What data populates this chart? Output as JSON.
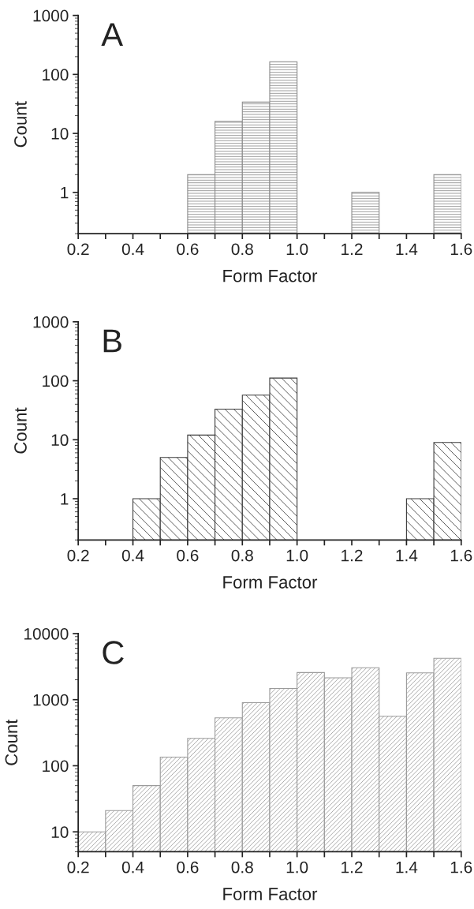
{
  "chart_data": [
    {
      "type": "histogram",
      "title": "A",
      "xlabel": "Form Factor",
      "ylabel": "Count",
      "log": "y",
      "color": "#8c8c8c",
      "bins": [
        0.2,
        0.3,
        0.4,
        0.5,
        0.6,
        0.7,
        0.8,
        0.9,
        1.0,
        1.1,
        1.2,
        1.3,
        1.4,
        1.5,
        1.6
      ],
      "values": [
        null,
        null,
        null,
        null,
        2,
        16,
        34,
        164,
        null,
        null,
        1,
        null,
        null,
        2
      ],
      "xlim": [
        0.2,
        1.6
      ],
      "ylim": [
        0.2,
        1000
      ],
      "xticks": [
        {
          "value": 0.2,
          "label": "0.2"
        },
        {
          "value": 0.3,
          "label": null
        },
        {
          "value": 0.4,
          "label": "0.4"
        },
        {
          "value": 0.5,
          "label": null
        },
        {
          "value": 0.6,
          "label": "0.6"
        },
        {
          "value": 0.7,
          "label": null
        },
        {
          "value": 0.8,
          "label": "0.8"
        },
        {
          "value": 0.9,
          "label": null
        },
        {
          "value": 1.0,
          "label": "1.0"
        },
        {
          "value": 1.1,
          "label": null
        },
        {
          "value": 1.2,
          "label": "1.2"
        },
        {
          "value": 1.3,
          "label": null
        },
        {
          "value": 1.4,
          "label": "1.4"
        },
        {
          "value": 1.5,
          "label": null
        },
        {
          "value": 1.6,
          "label": "1.6"
        }
      ],
      "yticks": [
        1,
        10,
        100,
        1000
      ]
    },
    {
      "type": "histogram",
      "title": "B",
      "xlabel": "Form Factor",
      "ylabel": "Count",
      "log": "y",
      "color": "#3a3a3a",
      "bins": [
        0.2,
        0.3,
        0.4,
        0.5,
        0.6,
        0.7,
        0.8,
        0.9,
        1.0,
        1.1,
        1.2,
        1.3,
        1.4,
        1.5,
        1.6
      ],
      "values": [
        null,
        null,
        1,
        5,
        12,
        33,
        57,
        111,
        null,
        null,
        null,
        null,
        1,
        9
      ],
      "xlim": [
        0.2,
        1.6
      ],
      "ylim": [
        0.2,
        1000
      ],
      "xticks": [
        {
          "value": 0.2,
          "label": "0.2"
        },
        {
          "value": 0.3,
          "label": null
        },
        {
          "value": 0.4,
          "label": "0.4"
        },
        {
          "value": 0.5,
          "label": null
        },
        {
          "value": 0.6,
          "label": "0.6"
        },
        {
          "value": 0.7,
          "label": null
        },
        {
          "value": 0.8,
          "label": "0.8"
        },
        {
          "value": 0.9,
          "label": null
        },
        {
          "value": 1.0,
          "label": "1.0"
        },
        {
          "value": 1.1,
          "label": null
        },
        {
          "value": 1.2,
          "label": "1.2"
        },
        {
          "value": 1.3,
          "label": null
        },
        {
          "value": 1.4,
          "label": "1.4"
        },
        {
          "value": 1.5,
          "label": null
        },
        {
          "value": 1.6,
          "label": "1.6"
        }
      ],
      "yticks": [
        1,
        10,
        100,
        1000
      ]
    },
    {
      "type": "histogram",
      "title": "C",
      "xlabel": "Form Factor",
      "ylabel": "Count",
      "log": "y",
      "color": "#9a9a9a",
      "bins": [
        0.2,
        0.3,
        0.4,
        0.5,
        0.6,
        0.7,
        0.8,
        0.9,
        1.0,
        1.1,
        1.2,
        1.3,
        1.4,
        1.5,
        1.6
      ],
      "values": [
        10,
        21,
        50,
        135,
        260,
        530,
        900,
        1480,
        2570,
        2140,
        3040,
        560,
        2540,
        4230
      ],
      "xlim": [
        0.2,
        1.6
      ],
      "ylim": [
        5,
        10000
      ],
      "xticks": [
        {
          "value": 0.2,
          "label": "0.2"
        },
        {
          "value": 0.3,
          "label": null
        },
        {
          "value": 0.4,
          "label": "0.4"
        },
        {
          "value": 0.5,
          "label": null
        },
        {
          "value": 0.6,
          "label": "0.6"
        },
        {
          "value": 0.7,
          "label": null
        },
        {
          "value": 0.8,
          "label": "0.8"
        },
        {
          "value": 0.9,
          "label": null
        },
        {
          "value": 1.0,
          "label": "1.0"
        },
        {
          "value": 1.1,
          "label": null
        },
        {
          "value": 1.2,
          "label": "1.2"
        },
        {
          "value": 1.3,
          "label": null
        },
        {
          "value": 1.4,
          "label": "1.4"
        },
        {
          "value": 1.5,
          "label": null
        },
        {
          "value": 1.6,
          "label": "1.6"
        }
      ],
      "yticks": [
        10,
        100,
        1000,
        10000
      ]
    }
  ]
}
